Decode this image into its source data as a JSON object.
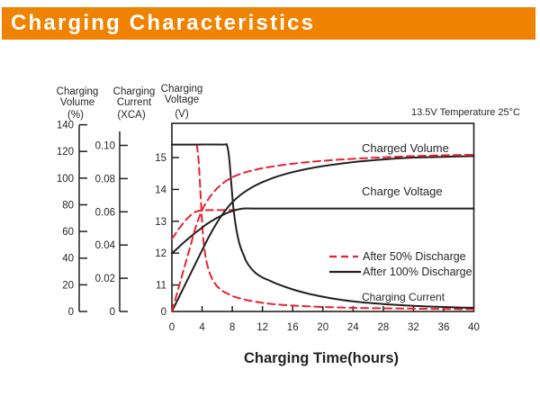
{
  "header": {
    "title": "Charging Characteristics",
    "bg_color": "#ef8200",
    "text_color": "#ffffff"
  },
  "chart_data": {
    "type": "line",
    "condition_label": "13.5V   Temperature 25°C",
    "xlabel": "Charging Time(hours)",
    "x_ticks": [
      0,
      4,
      8,
      12,
      16,
      20,
      24,
      28,
      32,
      36,
      40
    ],
    "x_range": [
      0,
      40
    ],
    "grid": "off",
    "axes": [
      {
        "id": "volume",
        "title_lines": [
          "Charging",
          "Volume"
        ],
        "unit": "(%)",
        "ticks": [
          140,
          120,
          100,
          80,
          60,
          40,
          20,
          0
        ],
        "range": [
          0,
          140
        ]
      },
      {
        "id": "current",
        "title_lines": [
          "Charging",
          "Current"
        ],
        "unit": "(XCA)",
        "ticks": [
          "0.10",
          "0.08",
          "0.06",
          "0.04",
          "0.02",
          "0"
        ],
        "range": [
          0,
          0.1
        ]
      },
      {
        "id": "voltage",
        "title_lines": [
          "Charging",
          "Voltage"
        ],
        "unit": "(V)",
        "ticks": [
          15,
          14,
          13,
          12,
          11,
          0
        ],
        "range": [
          11,
          15.4
        ]
      }
    ],
    "legend": {
      "position": "inside-right",
      "items": [
        {
          "label": "After 50% Discharge",
          "style": "dashed",
          "color": "#e8232e"
        },
        {
          "label": "After 100% Discharge",
          "style": "solid",
          "color": "#231f20"
        }
      ]
    },
    "curve_labels": {
      "charged_volume": "Charged Volume",
      "charge_voltage": "Charge Voltage",
      "charging_current": "Charging Current"
    },
    "series": [
      {
        "id": "charged_volume_50",
        "group": "Charged Volume",
        "condition": "After 50% Discharge",
        "axis": "volume",
        "style": "dashed",
        "color": "#e8232e",
        "points": [
          [
            0,
            0
          ],
          [
            0.8,
            16
          ],
          [
            1.6,
            32
          ],
          [
            2.4,
            48
          ],
          [
            3.2,
            64
          ],
          [
            4,
            76
          ],
          [
            4.8,
            84
          ],
          [
            5.6,
            90
          ],
          [
            6.4,
            94.5
          ],
          [
            7.2,
            98
          ],
          [
            8,
            100.6
          ],
          [
            9,
            103
          ],
          [
            10,
            104.8
          ],
          [
            11,
            106.2
          ],
          [
            12,
            107.4
          ],
          [
            13,
            108.4
          ],
          [
            14,
            109.3
          ],
          [
            16,
            110.8
          ],
          [
            18,
            112
          ],
          [
            20,
            113
          ],
          [
            22,
            113.8
          ],
          [
            24,
            114.5
          ],
          [
            26,
            115.1
          ],
          [
            28,
            115.6
          ],
          [
            30,
            116.1
          ],
          [
            32,
            116.5
          ],
          [
            34,
            116.8
          ],
          [
            36,
            117.1
          ],
          [
            38,
            117.3
          ],
          [
            40,
            117.5
          ]
        ]
      },
      {
        "id": "charged_volume_100",
        "group": "Charged Volume",
        "condition": "After 100% Discharge",
        "axis": "volume",
        "style": "solid",
        "color": "#231f20",
        "points": [
          [
            0,
            0
          ],
          [
            1,
            11.5
          ],
          [
            2,
            23
          ],
          [
            3,
            34.5
          ],
          [
            4,
            46
          ],
          [
            5,
            57
          ],
          [
            5.8,
            65
          ],
          [
            6.6,
            72
          ],
          [
            7.4,
            78
          ],
          [
            8.2,
            83
          ],
          [
            9,
            87
          ],
          [
            10,
            91
          ],
          [
            11,
            94.3
          ],
          [
            12,
            97
          ],
          [
            13,
            99.3
          ],
          [
            14,
            101.3
          ],
          [
            15,
            103
          ],
          [
            16,
            104.5
          ],
          [
            18,
            107
          ],
          [
            20,
            109
          ],
          [
            22,
            110.6
          ],
          [
            24,
            112
          ],
          [
            26,
            113.1
          ],
          [
            28,
            114
          ],
          [
            30,
            114.8
          ],
          [
            32,
            115.4
          ],
          [
            34,
            115.7
          ],
          [
            36,
            116
          ],
          [
            38,
            116.3
          ],
          [
            40,
            116.5
          ]
        ]
      },
      {
        "id": "charge_voltage_50",
        "group": "Charge Voltage",
        "condition": "After 50% Discharge",
        "axis": "voltage",
        "style": "dashed",
        "color": "#e8232e",
        "points": [
          [
            0,
            12.45
          ],
          [
            0.4,
            12.58
          ],
          [
            0.8,
            12.72
          ],
          [
            1.2,
            12.85
          ],
          [
            1.6,
            12.97
          ],
          [
            2,
            13.08
          ],
          [
            2.4,
            13.17
          ],
          [
            2.8,
            13.25
          ],
          [
            3.2,
            13.3
          ],
          [
            3.6,
            13.33
          ],
          [
            4,
            13.34
          ],
          [
            5,
            13.35
          ],
          [
            6.5,
            13.35
          ],
          [
            8.5,
            13.35
          ]
        ]
      },
      {
        "id": "charge_voltage_100",
        "group": "Charge Voltage",
        "condition": "After 100% Discharge",
        "axis": "voltage",
        "style": "solid",
        "color": "#231f20",
        "points": [
          [
            0,
            12.0
          ],
          [
            0.5,
            12.1
          ],
          [
            1,
            12.21
          ],
          [
            1.5,
            12.32
          ],
          [
            2,
            12.42
          ],
          [
            2.5,
            12.52
          ],
          [
            3,
            12.62
          ],
          [
            3.5,
            12.71
          ],
          [
            4,
            12.8
          ],
          [
            4.5,
            12.89
          ],
          [
            5,
            12.97
          ],
          [
            5.5,
            13.04
          ],
          [
            6,
            13.11
          ],
          [
            6.5,
            13.17
          ],
          [
            7,
            13.23
          ],
          [
            7.5,
            13.28
          ],
          [
            8,
            13.32
          ],
          [
            8.5,
            13.36
          ],
          [
            9,
            13.38
          ],
          [
            9.5,
            13.4
          ],
          [
            12,
            13.4
          ],
          [
            20,
            13.4
          ],
          [
            30,
            13.4
          ],
          [
            40,
            13.4
          ]
        ]
      },
      {
        "id": "charging_current_50",
        "group": "Charging Current",
        "condition": "After 50% Discharge",
        "axis": "current",
        "style": "dashed",
        "color": "#e8232e",
        "points": [
          [
            3.3,
            0.1005
          ],
          [
            3.55,
            0.09
          ],
          [
            3.8,
            0.07
          ],
          [
            4,
            0.054
          ],
          [
            4.2,
            0.042
          ],
          [
            4.5,
            0.032
          ],
          [
            4.8,
            0.026
          ],
          [
            5.2,
            0.021
          ],
          [
            5.6,
            0.0175
          ],
          [
            6,
            0.0152
          ],
          [
            6.5,
            0.0131
          ],
          [
            7,
            0.0116
          ],
          [
            8,
            0.0094
          ],
          [
            9,
            0.0079
          ],
          [
            10,
            0.0068
          ],
          [
            12,
            0.0052
          ],
          [
            14,
            0.0042
          ],
          [
            16,
            0.0036
          ],
          [
            18,
            0.0031
          ],
          [
            20,
            0.0027
          ],
          [
            24,
            0.0022
          ],
          [
            28,
            0.0019
          ],
          [
            32,
            0.0017
          ],
          [
            36,
            0.0015
          ],
          [
            40,
            0.0014
          ]
        ]
      },
      {
        "id": "charging_current_100",
        "group": "Charging Current",
        "condition": "After 100% Discharge",
        "axis": "current",
        "style": "solid",
        "color": "#231f20",
        "points": [
          [
            0,
            0.1005
          ],
          [
            3,
            0.1005
          ],
          [
            6.8,
            0.1005
          ],
          [
            7.3,
            0.1
          ],
          [
            7.6,
            0.092
          ],
          [
            7.9,
            0.075
          ],
          [
            8.2,
            0.06
          ],
          [
            8.6,
            0.048
          ],
          [
            9,
            0.04
          ],
          [
            9.5,
            0.034
          ],
          [
            10,
            0.029
          ],
          [
            11,
            0.0235
          ],
          [
            12,
            0.0205
          ],
          [
            13,
            0.0185
          ],
          [
            14,
            0.0165
          ],
          [
            16,
            0.0133
          ],
          [
            18,
            0.0108
          ],
          [
            20,
            0.0089
          ],
          [
            22,
            0.0073
          ],
          [
            24,
            0.0061
          ],
          [
            26,
            0.0052
          ],
          [
            28,
            0.0045
          ],
          [
            30,
            0.0039
          ],
          [
            32,
            0.0034
          ],
          [
            34,
            0.003
          ],
          [
            36,
            0.0027
          ],
          [
            38,
            0.0024
          ],
          [
            40,
            0.0022
          ]
        ]
      }
    ]
  }
}
